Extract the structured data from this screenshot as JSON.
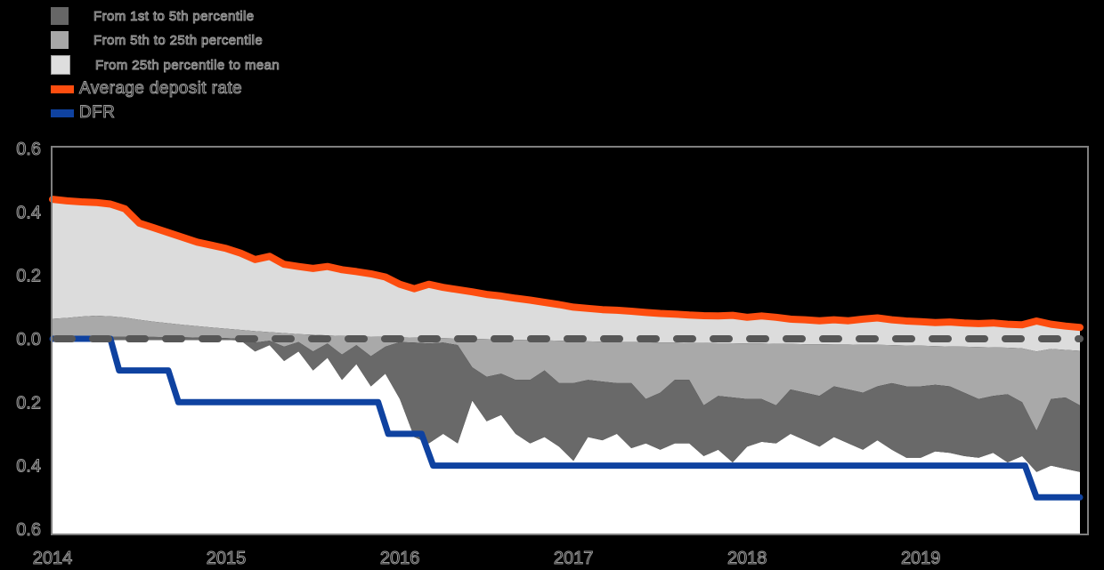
{
  "page": {
    "background": "#000000"
  },
  "legend": {
    "items": [
      {
        "label": "From 1st to 5th percentile",
        "swatch": "square",
        "color": "#666666"
      },
      {
        "label": "From 5th to 25th percentile",
        "swatch": "square",
        "color": "#a7a7a7"
      },
      {
        "label": "From 25th percentile to mean",
        "swatch": "square",
        "color": "#dedede"
      },
      {
        "label": "Average deposit rate",
        "swatch": "line",
        "color": "#fd4d0f"
      },
      {
        "label": "DFR",
        "swatch": "line",
        "color": "#0f42a0"
      }
    ]
  },
  "chart_data": {
    "type": "area",
    "title": "",
    "x_start_year": 2014,
    "x_months_per_point": 1,
    "x_tick_labels": [
      "2014",
      "2015",
      "2016",
      "2017",
      "2018",
      "2019"
    ],
    "y_tick_values": [
      0.6,
      0.4,
      0.2,
      0,
      -0.2,
      -0.4,
      -0.6
    ],
    "y_tick_labels": [
      "0.6",
      "0.4",
      "0.2",
      "0.0",
      "0.2",
      "0.4",
      "0.6"
    ],
    "ylim": [
      -0.617,
      0.606
    ],
    "frame_color": "#7f7f7f",
    "plot_background": "#000000",
    "below_p1_fill": "#ffffff",
    "zero_line": {
      "style": "dashed",
      "color": "#575757"
    },
    "bands": [
      {
        "name": "From 1st to 5th percentile",
        "upper": "p5",
        "lower": "p1",
        "color": "#696969"
      },
      {
        "name": "From 5th to 25th percentile",
        "upper": "p25",
        "lower": "p5",
        "color": "#a9a9a9"
      },
      {
        "name": "From 25th percentile to mean",
        "upper": "mean",
        "lower": "p25",
        "color": "#dcdcdc"
      }
    ],
    "series": {
      "mean": {
        "name": "Average deposit rate",
        "color": "#fd4d0f",
        "values": [
          0.44,
          0.435,
          0.432,
          0.43,
          0.425,
          0.41,
          0.365,
          0.35,
          0.335,
          0.32,
          0.305,
          0.295,
          0.285,
          0.27,
          0.25,
          0.26,
          0.235,
          0.228,
          0.222,
          0.228,
          0.218,
          0.212,
          0.205,
          0.195,
          0.172,
          0.158,
          0.172,
          0.162,
          0.155,
          0.148,
          0.14,
          0.135,
          0.128,
          0.122,
          0.115,
          0.108,
          0.1,
          0.096,
          0.092,
          0.09,
          0.087,
          0.083,
          0.08,
          0.078,
          0.075,
          0.073,
          0.072,
          0.074,
          0.068,
          0.072,
          0.068,
          0.062,
          0.06,
          0.057,
          0.06,
          0.057,
          0.062,
          0.066,
          0.06,
          0.056,
          0.054,
          0.051,
          0.053,
          0.05,
          0.048,
          0.05,
          0.046,
          0.044,
          0.056,
          0.046,
          0.04,
          0.036
        ]
      },
      "p25": {
        "name": "25th percentile",
        "values": [
          0.063,
          0.066,
          0.07,
          0.073,
          0.071,
          0.067,
          0.06,
          0.054,
          0.049,
          0.044,
          0.04,
          0.036,
          0.032,
          0.028,
          0.024,
          0.021,
          0.018,
          0.015,
          0.013,
          0.011,
          0.009,
          0.008,
          0.007,
          0.006,
          0.005,
          0.004,
          0.003,
          0.002,
          0.001,
          0,
          -0.001,
          -0.002,
          -0.003,
          -0.004,
          -0.005,
          -0.006,
          -0.007,
          -0.008,
          -0.009,
          -0.01,
          -0.01,
          -0.011,
          -0.012,
          -0.012,
          -0.013,
          -0.013,
          -0.014,
          -0.014,
          -0.015,
          -0.015,
          -0.016,
          -0.016,
          -0.017,
          -0.017,
          -0.018,
          -0.018,
          -0.019,
          -0.019,
          -0.02,
          -0.021,
          -0.022,
          -0.023,
          -0.024,
          -0.025,
          -0.026,
          -0.027,
          -0.028,
          -0.03,
          -0.04,
          -0.032,
          -0.035,
          -0.038
        ]
      },
      "p5": {
        "name": "5th percentile",
        "values": [
          0.008,
          0.008,
          0.008,
          0.008,
          0.007,
          0.007,
          0.006,
          0.006,
          0.005,
          0.005,
          0.004,
          0.004,
          0.002,
          0,
          -0.012,
          -0.006,
          -0.025,
          -0.01,
          -0.04,
          -0.015,
          -0.05,
          -0.02,
          -0.055,
          -0.025,
          -0.01,
          -0.012,
          -0.015,
          -0.012,
          -0.02,
          -0.09,
          -0.12,
          -0.11,
          -0.13,
          -0.13,
          -0.1,
          -0.14,
          -0.14,
          -0.13,
          -0.135,
          -0.14,
          -0.14,
          -0.19,
          -0.17,
          -0.13,
          -0.13,
          -0.21,
          -0.18,
          -0.185,
          -0.19,
          -0.19,
          -0.21,
          -0.16,
          -0.17,
          -0.18,
          -0.15,
          -0.16,
          -0.17,
          -0.15,
          -0.14,
          -0.15,
          -0.15,
          -0.145,
          -0.15,
          -0.17,
          -0.19,
          -0.18,
          -0.175,
          -0.2,
          -0.29,
          -0.19,
          -0.185,
          -0.21
        ]
      },
      "p1": {
        "name": "1st percentile",
        "values": [
          -0.004,
          -0.004,
          -0.004,
          -0.004,
          -0.004,
          -0.004,
          -0.004,
          -0.004,
          -0.004,
          -0.004,
          -0.004,
          -0.004,
          -0.004,
          -0.005,
          -0.04,
          -0.02,
          -0.07,
          -0.04,
          -0.1,
          -0.06,
          -0.13,
          -0.08,
          -0.15,
          -0.11,
          -0.19,
          -0.31,
          -0.33,
          -0.3,
          -0.33,
          -0.195,
          -0.26,
          -0.24,
          -0.3,
          -0.33,
          -0.31,
          -0.34,
          -0.385,
          -0.31,
          -0.32,
          -0.3,
          -0.345,
          -0.33,
          -0.35,
          -0.33,
          -0.33,
          -0.37,
          -0.35,
          -0.39,
          -0.34,
          -0.325,
          -0.33,
          -0.3,
          -0.32,
          -0.34,
          -0.31,
          -0.33,
          -0.35,
          -0.32,
          -0.35,
          -0.375,
          -0.375,
          -0.355,
          -0.36,
          -0.37,
          -0.375,
          -0.36,
          -0.39,
          -0.37,
          -0.42,
          -0.4,
          -0.41,
          -0.42
        ]
      },
      "dfr": {
        "name": "DFR",
        "color": "#0f42a0",
        "step_points": [
          [
            0,
            0
          ],
          [
            4.0,
            0
          ],
          [
            4.6,
            -0.1
          ],
          [
            8.0,
            -0.1
          ],
          [
            8.7,
            -0.2
          ],
          [
            22.5,
            -0.2
          ],
          [
            23.2,
            -0.3
          ],
          [
            25.5,
            -0.3
          ],
          [
            26.3,
            -0.4
          ],
          [
            67.2,
            -0.4
          ],
          [
            68.0,
            -0.5
          ],
          [
            71,
            -0.5
          ]
        ]
      }
    }
  }
}
